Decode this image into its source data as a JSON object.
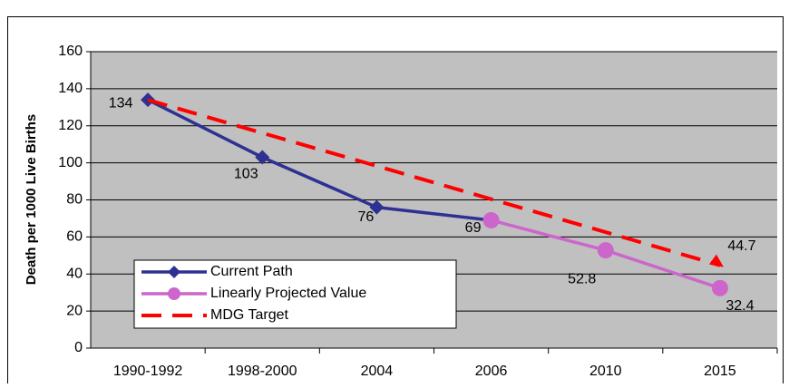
{
  "chart_data": {
    "type": "line",
    "y_label": "Death per 1000 Live Births",
    "categories": [
      "1990-1992",
      "1998-2000",
      "2004",
      "2006",
      "2010",
      "2015"
    ],
    "series": [
      {
        "name": "Current Path",
        "color": "#2e3192",
        "marker": "diamond",
        "dash": false,
        "values": [
          134,
          103,
          76,
          69,
          null,
          null
        ],
        "value_labels": [
          "134",
          "103",
          "76",
          "69",
          null,
          null
        ]
      },
      {
        "name": "Linearly Projected Value",
        "color": "#cc66cc",
        "marker": "circle",
        "dash": false,
        "values": [
          null,
          null,
          null,
          69,
          52.8,
          32.4
        ],
        "value_labels": [
          null,
          null,
          null,
          null,
          "52.8",
          "32.4"
        ]
      },
      {
        "name": "MDG Target",
        "color": "#ff0000",
        "marker": "none",
        "dash": true,
        "values": [
          134,
          116.1,
          98.3,
          80.4,
          62.6,
          44.7
        ],
        "value_labels": [
          null,
          null,
          null,
          null,
          null,
          "44.7"
        ]
      }
    ],
    "ylim": [
      0,
      160
    ],
    "yticks": [
      0,
      20,
      40,
      60,
      80,
      100,
      120,
      140,
      160
    ],
    "grid": true,
    "plot_background": "#c0c0c0"
  }
}
